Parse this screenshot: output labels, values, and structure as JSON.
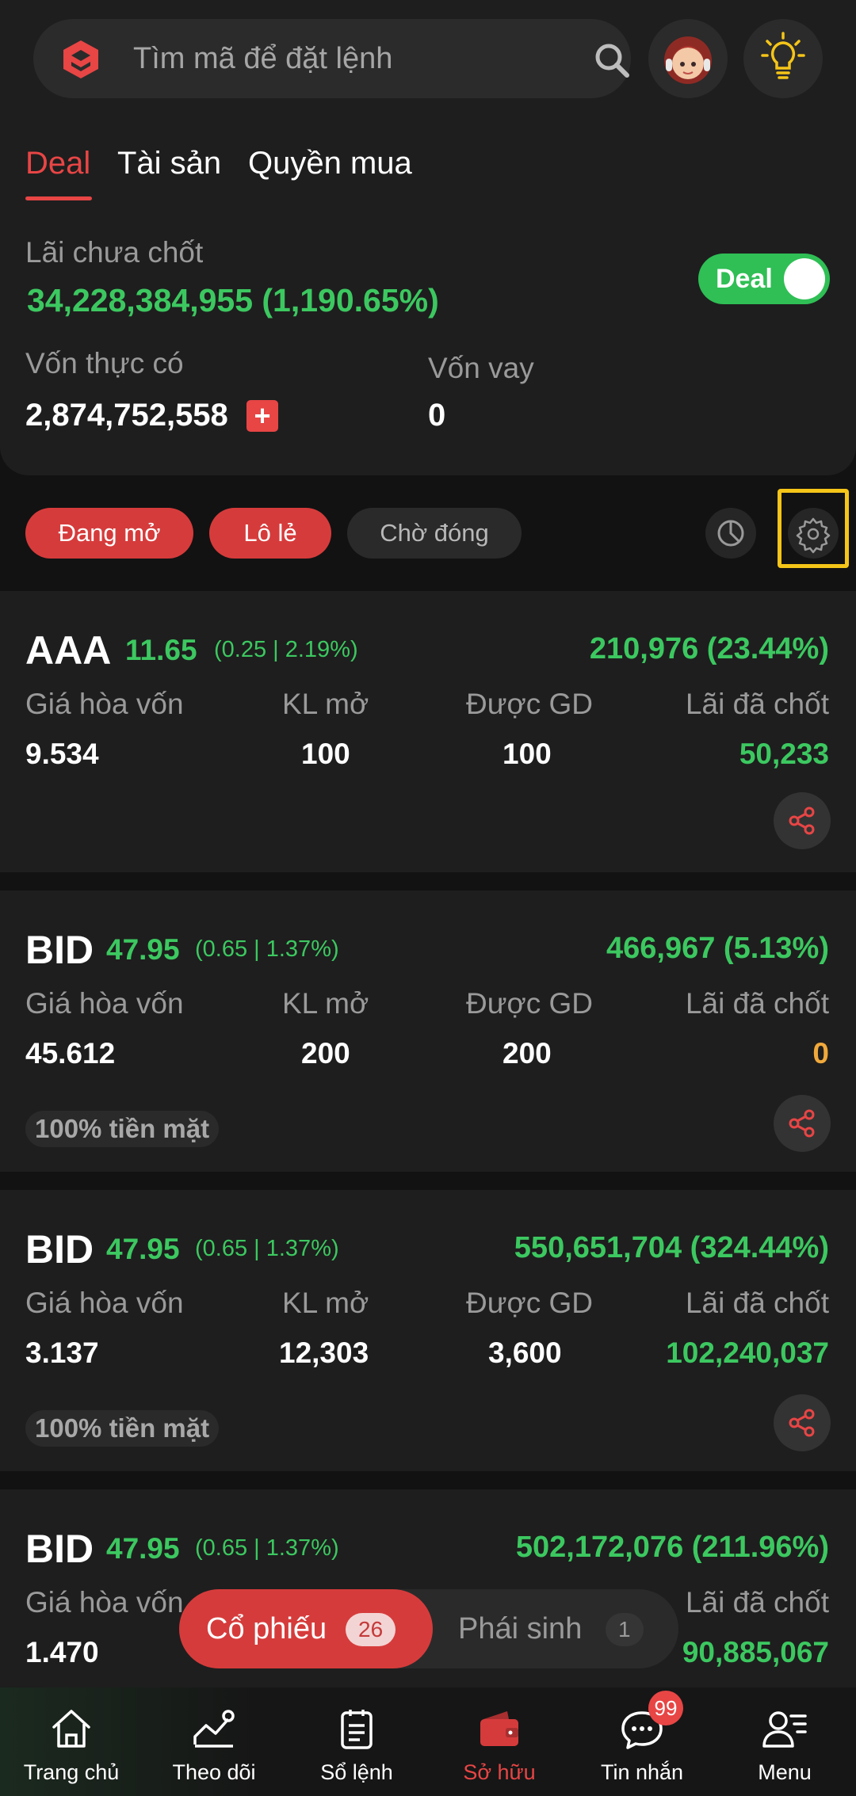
{
  "search": {
    "placeholder": "Tìm mã để đặt lệnh"
  },
  "tabs": [
    {
      "label": "Deal",
      "active": true
    },
    {
      "label": "Tài sản",
      "active": false
    },
    {
      "label": "Quyền mua",
      "active": false
    }
  ],
  "summary": {
    "unrealized_label": "Lãi chưa chốt",
    "unrealized_value": "34,228,384,955 (1,190.65%)",
    "equity_label": "Vốn thực có",
    "equity_value": "2,874,752,558",
    "loan_label": "Vốn vay",
    "loan_value": "0",
    "toggle_label": "Deal",
    "toggle_on": true
  },
  "filters": [
    {
      "label": "Đang mở",
      "active": true
    },
    {
      "label": "Lô lẻ",
      "active": true
    },
    {
      "label": "Chờ đóng",
      "active": false
    }
  ],
  "columns": [
    "Giá hòa vốn",
    "KL mở",
    "Được GD",
    "Lãi đã chốt"
  ],
  "positions": [
    {
      "symbol": "AAA",
      "price": "11.65",
      "change": "(0.25 | 2.19%)",
      "pl": "210,976 (23.44%)",
      "breakeven": "9.534",
      "open_qty": "100",
      "tradable": "100",
      "realized": "50,233",
      "badge": ""
    },
    {
      "symbol": "BID",
      "price": "47.95",
      "change": "(0.65 | 1.37%)",
      "pl": "466,967 (5.13%)",
      "breakeven": "45.612",
      "open_qty": "200",
      "tradable": "200",
      "realized": "0",
      "badge": "100% tiền mặt"
    },
    {
      "symbol": "BID",
      "price": "47.95",
      "change": "(0.65 | 1.37%)",
      "pl": "550,651,704 (324.44%)",
      "breakeven": "3.137",
      "open_qty": "12,303",
      "tradable": "3,600",
      "realized": "102,240,037",
      "badge": "100% tiền mặt"
    },
    {
      "symbol": "BID",
      "price": "47.95",
      "change": "(0.65 | 1.37%)",
      "pl": "502,172,076 (211.96%)",
      "breakeven": "1.470",
      "open_qty": "",
      "tradable": "",
      "realized": "90,885,067",
      "badge": ""
    }
  ],
  "segment": {
    "stocks_label": "Cổ phiếu",
    "stocks_count": "26",
    "derivatives_label": "Phái sinh",
    "derivatives_count": "1"
  },
  "nav": [
    {
      "label": "Trang chủ",
      "icon": "home-icon"
    },
    {
      "label": "Theo dõi",
      "icon": "chart-icon"
    },
    {
      "label": "Sổ lệnh",
      "icon": "clipboard-icon"
    },
    {
      "label": "Sở hữu",
      "icon": "wallet-icon",
      "active": true
    },
    {
      "label": "Tin nhắn",
      "icon": "chat-icon",
      "badge": "99"
    },
    {
      "label": "Menu",
      "icon": "menu-user-icon"
    }
  ],
  "colors": {
    "accent": "#e84545",
    "gain": "#3cc860",
    "neutral": "#f0a93b",
    "background": "#121212"
  }
}
